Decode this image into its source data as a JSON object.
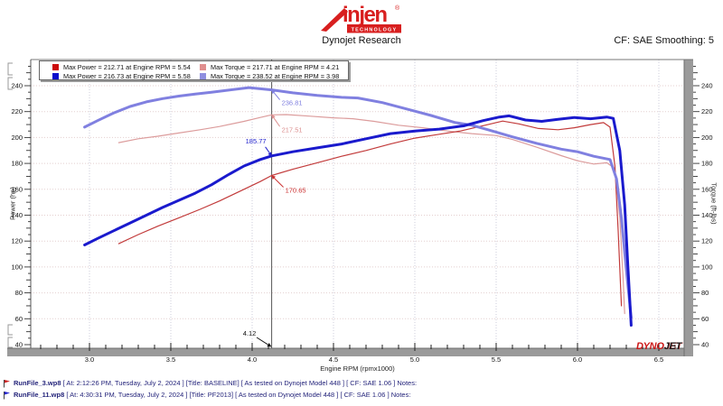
{
  "header": {
    "logo": {
      "brand": "injen",
      "sub": "TECHNOLOGY",
      "reg": "®"
    },
    "title": "Dynojet Research",
    "smoothing": "CF: SAE Smoothing: 5"
  },
  "legend": {
    "items": [
      {
        "color": "#cc0c0c",
        "label": "Max Power = 212.71 at Engine RPM = 5.54"
      },
      {
        "color": "#e08f8f",
        "label": "Max Torque = 217.71 at Engine RPM = 4.21"
      },
      {
        "color": "#0c0ccc",
        "label": "Max Power = 216.73 at Engine RPM = 5.58"
      },
      {
        "color": "#8f8fe0",
        "label": "Max Torque = 238.52 at Engine RPM = 3.98"
      }
    ]
  },
  "chart_data": {
    "type": "line",
    "xlabel": "Engine RPM (rpmx1000)",
    "ylabel_left": "Power (hp)",
    "ylabel_right": "Torque (ft-lbs)",
    "xlim": [
      2.84,
      6.56
    ],
    "ylim": [
      38,
      260
    ],
    "grid": true,
    "x_ticks": [
      {
        "v": 3.0,
        "t": "3.0"
      },
      {
        "v": 3.5,
        "t": "3.5"
      },
      {
        "v": 4.0,
        "t": "4.0"
      },
      {
        "v": 4.5,
        "t": "4.5"
      },
      {
        "v": 5.0,
        "t": "5.0"
      },
      {
        "v": 5.5,
        "t": "5.5"
      },
      {
        "v": 6.0,
        "t": "6.0"
      },
      {
        "v": 6.5,
        "t": "6.5"
      }
    ],
    "y_ticks": [
      40,
      60,
      80,
      100,
      120,
      140,
      160,
      180,
      200,
      220,
      240
    ],
    "series": [
      {
        "id": "baseline-torque",
        "name": "BASELINE Torque",
        "color": "#dc9c9c",
        "width": 1.2,
        "max": {
          "value": 217.71,
          "rpm": 4.21
        },
        "points": [
          [
            3.18,
            196
          ],
          [
            3.3,
            199
          ],
          [
            3.42,
            201
          ],
          [
            3.55,
            203.5
          ],
          [
            3.68,
            206
          ],
          [
            3.8,
            208.5
          ],
          [
            3.95,
            212.5
          ],
          [
            4.05,
            215.5
          ],
          [
            4.12,
            217.51
          ],
          [
            4.21,
            217.71
          ],
          [
            4.35,
            216.5
          ],
          [
            4.5,
            215.2
          ],
          [
            4.62,
            214.5
          ],
          [
            4.75,
            212.5
          ],
          [
            4.9,
            209.5
          ],
          [
            5.05,
            207.5
          ],
          [
            5.2,
            205
          ],
          [
            5.35,
            203
          ],
          [
            5.5,
            201.5
          ],
          [
            5.6,
            198.5
          ],
          [
            5.75,
            192.5
          ],
          [
            5.9,
            186
          ],
          [
            6.0,
            182
          ],
          [
            6.1,
            179.5
          ],
          [
            6.18,
            180.5
          ],
          [
            6.23,
            176
          ],
          [
            6.26,
            138
          ],
          [
            6.28,
            92
          ],
          [
            6.29,
            64
          ]
        ]
      },
      {
        "id": "baseline-power",
        "name": "BASELINE Power",
        "color": "#c23b3b",
        "width": 1.2,
        "max": {
          "value": 212.71,
          "rpm": 5.54
        },
        "points": [
          [
            3.18,
            118
          ],
          [
            3.3,
            125
          ],
          [
            3.42,
            131.5
          ],
          [
            3.55,
            138
          ],
          [
            3.68,
            144.5
          ],
          [
            3.8,
            151
          ],
          [
            3.95,
            160
          ],
          [
            4.05,
            166
          ],
          [
            4.12,
            170.65
          ],
          [
            4.25,
            175.5
          ],
          [
            4.4,
            180.5
          ],
          [
            4.55,
            185.5
          ],
          [
            4.7,
            190
          ],
          [
            4.85,
            195
          ],
          [
            5.0,
            199.5
          ],
          [
            5.15,
            202.5
          ],
          [
            5.28,
            205
          ],
          [
            5.4,
            208.5
          ],
          [
            5.54,
            212.71
          ],
          [
            5.64,
            210.5
          ],
          [
            5.76,
            207
          ],
          [
            5.88,
            206
          ],
          [
            5.98,
            207.5
          ],
          [
            6.08,
            210
          ],
          [
            6.16,
            211.5
          ],
          [
            6.2,
            208
          ],
          [
            6.23,
            178
          ],
          [
            6.25,
            128
          ],
          [
            6.27,
            70
          ]
        ]
      },
      {
        "id": "pf2013-torque",
        "name": "PF2013 Torque",
        "color": "#8080e0",
        "width": 3,
        "max": {
          "value": 238.52,
          "rpm": 3.98
        },
        "points": [
          [
            2.97,
            208
          ],
          [
            3.05,
            213
          ],
          [
            3.15,
            219
          ],
          [
            3.25,
            224
          ],
          [
            3.35,
            227.5
          ],
          [
            3.45,
            230
          ],
          [
            3.55,
            232
          ],
          [
            3.65,
            233.5
          ],
          [
            3.75,
            235
          ],
          [
            3.85,
            236.5
          ],
          [
            3.98,
            238.52
          ],
          [
            4.12,
            236.81
          ],
          [
            4.25,
            234.5
          ],
          [
            4.4,
            232.5
          ],
          [
            4.55,
            231
          ],
          [
            4.65,
            230.5
          ],
          [
            4.8,
            227
          ],
          [
            4.95,
            222
          ],
          [
            5.1,
            217
          ],
          [
            5.25,
            211.5
          ],
          [
            5.35,
            209.5
          ],
          [
            5.45,
            206
          ],
          [
            5.6,
            200.5
          ],
          [
            5.75,
            195.5
          ],
          [
            5.9,
            191
          ],
          [
            6.0,
            189
          ],
          [
            6.1,
            185.5
          ],
          [
            6.2,
            183
          ],
          [
            6.24,
            168
          ],
          [
            6.27,
            138
          ],
          [
            6.3,
            98
          ],
          [
            6.33,
            61
          ]
        ]
      },
      {
        "id": "pf2013-power",
        "name": "PF2013 Power",
        "color": "#1a1acd",
        "width": 3,
        "max": {
          "value": 216.73,
          "rpm": 5.58
        },
        "points": [
          [
            2.97,
            117
          ],
          [
            3.05,
            122
          ],
          [
            3.15,
            128
          ],
          [
            3.25,
            134
          ],
          [
            3.35,
            140
          ],
          [
            3.45,
            146
          ],
          [
            3.55,
            151.5
          ],
          [
            3.65,
            157
          ],
          [
            3.75,
            163.5
          ],
          [
            3.85,
            171
          ],
          [
            3.95,
            178
          ],
          [
            4.05,
            183
          ],
          [
            4.12,
            185.77
          ],
          [
            4.25,
            189
          ],
          [
            4.4,
            192
          ],
          [
            4.55,
            195
          ],
          [
            4.7,
            199
          ],
          [
            4.85,
            203
          ],
          [
            5.0,
            205
          ],
          [
            5.15,
            206.5
          ],
          [
            5.3,
            209
          ],
          [
            5.42,
            213
          ],
          [
            5.52,
            215.8
          ],
          [
            5.58,
            216.73
          ],
          [
            5.68,
            213.5
          ],
          [
            5.78,
            212.5
          ],
          [
            5.88,
            214
          ],
          [
            5.98,
            215.5
          ],
          [
            6.08,
            214.5
          ],
          [
            6.18,
            215.8
          ],
          [
            6.22,
            214.8
          ],
          [
            6.26,
            190
          ],
          [
            6.29,
            148
          ],
          [
            6.31,
            100
          ],
          [
            6.33,
            55
          ]
        ]
      }
    ],
    "cursor": {
      "rpm": 4.12,
      "label": "4.12"
    },
    "annotations": [
      {
        "text": "236.81",
        "rpm": 4.12,
        "value": 236.81,
        "color": "#8080e0"
      },
      {
        "text": "217.51",
        "rpm": 4.12,
        "value": 217.51,
        "color": "#dc8f8f"
      },
      {
        "text": "185.77",
        "rpm": 4.12,
        "value": 185.77,
        "color": "#2222cc"
      },
      {
        "text": "170.65",
        "rpm": 4.12,
        "value": 170.65,
        "color": "#cc3333"
      }
    ],
    "legend_position": "top-left"
  },
  "watermark": {
    "dyno": "DYNO",
    "jet": "JET"
  },
  "footer": {
    "runs": [
      {
        "file": "RunFile_3.wp8",
        "text": "[ At: 2:12:26 PM, Tuesday, July 2, 2024 ] [Title: BASELINE]  [ As tested on Dynojet Model 448 ] [ CF: SAE 1.06 ] Notes:"
      },
      {
        "file": "RunFile_11.wp8",
        "text": "[ At: 4:30:31 PM, Tuesday, July 2, 2024 ] [Title: PF2013]  [ As tested on Dynojet Model 448 ] [ CF: SAE 1.06 ] Notes:"
      }
    ]
  }
}
